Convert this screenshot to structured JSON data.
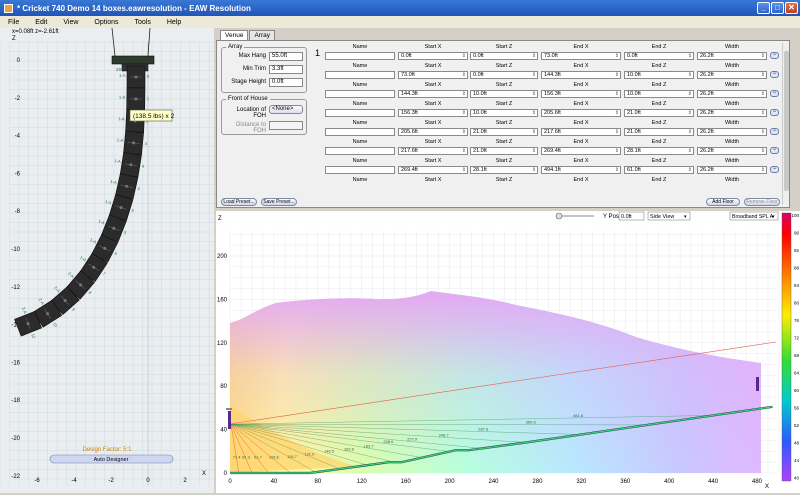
{
  "window": {
    "title": "* Cricket 740 Demo 14 boxes.eawresolution - EAW Resolution",
    "min": "_",
    "max": "□",
    "close": "✕"
  },
  "menu": [
    "File",
    "Edit",
    "View",
    "Options",
    "Tools",
    "Help"
  ],
  "left": {
    "coords": "x=0.08ft z=-2.61ft",
    "z_label": "Z",
    "x_label": "X",
    "y_ticks": [
      "0",
      "-2",
      "-4",
      "-6",
      "-8",
      "-10",
      "-12",
      "-14",
      "-16",
      "-18",
      "-20",
      "-22"
    ],
    "x_ticks": [
      "-6",
      "-4",
      "-2",
      "0",
      "2"
    ],
    "tooltip": "(138.5 lbs) x 2",
    "design_factor": "Design Factor: 5:1",
    "auto_designer": "Auto Designer",
    "cabinets": [
      {
        "label": "2S",
        "angle": ""
      },
      {
        "label": "1-A",
        "angle": "0"
      },
      {
        "label": "1-A",
        "angle": "1"
      },
      {
        "label": "1-A",
        "angle": "2"
      },
      {
        "label": "1-A",
        "angle": "3"
      },
      {
        "label": "1-A",
        "angle": "4"
      },
      {
        "label": "1-A",
        "angle": "4"
      },
      {
        "label": "1-A",
        "angle": "5"
      },
      {
        "label": "1-A",
        "angle": "5"
      },
      {
        "label": "1-A",
        "angle": "6"
      },
      {
        "label": "1-A",
        "angle": "7"
      },
      {
        "label": "2-A",
        "angle": "8"
      },
      {
        "label": "2-A",
        "angle": "9"
      },
      {
        "label": "2-A",
        "angle": "10"
      },
      {
        "label": "2-A",
        "angle": "12"
      }
    ]
  },
  "tabs": [
    "Venue",
    "Array"
  ],
  "array_group": {
    "title": "Array",
    "max_hang_label": "Max Hang",
    "max_hang": "55.0ft",
    "min_trim_label": "Min Trim",
    "min_trim": "3.3ft",
    "stage_height_label": "Stage Height",
    "stage_height": "0.0ft"
  },
  "foh_group": {
    "title": "Front of House",
    "location_label": "Location of FOH",
    "location": "<None>",
    "distance_label": "Distance to FOH",
    "distance": ""
  },
  "floor_number": "1",
  "table_headers": [
    "Name",
    "Start X",
    "Start Z",
    "End X",
    "End Z",
    "Width"
  ],
  "rows": [
    {
      "name": "",
      "start_x": "0.0ft",
      "start_z": "0.0ft",
      "end_x": "73.0ft",
      "end_z": "0.0ft",
      "width": "26.2ft"
    },
    {
      "name": "",
      "start_x": "73.0ft",
      "start_z": "0.0ft",
      "end_x": "144.3ft",
      "end_z": "10.0ft",
      "width": "26.2ft"
    },
    {
      "name": "",
      "start_x": "144.3ft",
      "start_z": "10.0ft",
      "end_x": "156.3ft",
      "end_z": "10.0ft",
      "width": "26.2ft"
    },
    {
      "name": "",
      "start_x": "156.3ft",
      "start_z": "10.0ft",
      "end_x": "205.6ft",
      "end_z": "21.0ft",
      "width": "26.2ft"
    },
    {
      "name": "",
      "start_x": "205.6ft",
      "start_z": "21.0ft",
      "end_x": "217.6ft",
      "end_z": "21.0ft",
      "width": "26.2ft"
    },
    {
      "name": "",
      "start_x": "217.6ft",
      "start_z": "21.0ft",
      "end_x": "269.4ft",
      "end_z": "28.1ft",
      "width": "26.2ft"
    },
    {
      "name": "",
      "start_x": "269.4ft",
      "start_z": "28.1ft",
      "end_x": "494.1ft",
      "end_z": "61.0ft",
      "width": "26.2ft"
    }
  ],
  "buttons": {
    "load_preset": "Load Preset...",
    "save_preset": "Save Preset...",
    "add_floor": "Add Floor",
    "remove_floor": "Remove Floor"
  },
  "plot": {
    "ypos_label": "Y Pos:",
    "ypos": "0.0ft",
    "view": "Side View",
    "metric": "Broadband SPL A",
    "z_label": "Z",
    "x_label": "X",
    "x_ticks": [
      "0",
      "40",
      "80",
      "120",
      "160",
      "200",
      "240",
      "280",
      "320",
      "360",
      "400",
      "440",
      "480"
    ],
    "y_ticks": [
      "200",
      "160",
      "120",
      "80",
      "40",
      "0"
    ],
    "scale": [
      "100",
      "96",
      "92",
      "88",
      "84",
      "80",
      "76",
      "72",
      "68",
      "64",
      "60",
      "56",
      "52",
      "48",
      "44",
      "40"
    ],
    "ray_labels": [
      "481.6",
      "360.6",
      "287.6",
      "248.7",
      "227.9",
      "208.6",
      "183.7",
      "163.8",
      "146.5",
      "131.0",
      "116.7",
      "103.6",
      "91.7",
      "81.3",
      "71.4"
    ],
    "colors": {
      "hot": "#ff0000",
      "cool": "#0000ff",
      "floor": "#0a6b2c",
      "array": "#5a2a8a"
    }
  }
}
